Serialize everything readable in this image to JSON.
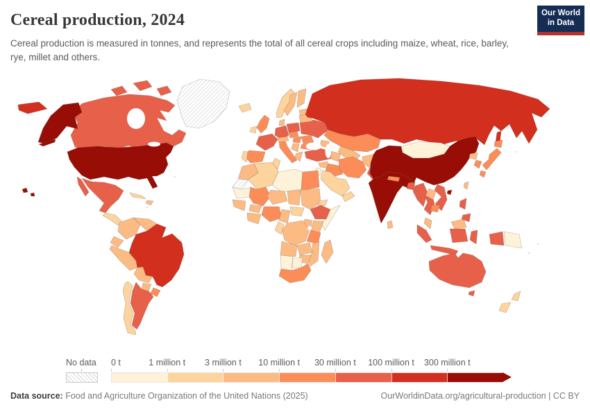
{
  "header": {
    "title": "Cereal production, 2024",
    "subtitle": "Cereal production is measured in tonnes, and represents the total of all cereal crops including maize, wheat, rice, barley, rye, millet and others.",
    "logo": {
      "line1": "Our World",
      "line2": "in Data",
      "bg_color": "#152d55",
      "accent_color": "#b5332a"
    }
  },
  "legend": {
    "no_data_label": "No data",
    "no_data_hatch_color": "#d4d4d4",
    "bins": [
      {
        "label": "0 t",
        "color": "#fef2d9"
      },
      {
        "label": "1 million t",
        "color": "#fdd49e"
      },
      {
        "label": "3 million t",
        "color": "#fdbb84"
      },
      {
        "label": "10 million t",
        "color": "#fc8d59"
      },
      {
        "label": "30 million t",
        "color": "#e7604a"
      },
      {
        "label": "100 million t",
        "color": "#d32f1e"
      },
      {
        "label": "300 million t",
        "color": "#980d05"
      }
    ]
  },
  "footer": {
    "source_label": "Data source:",
    "source_text": " Food and Agriculture Organization of the United Nations (2025)",
    "link_text": "OurWorldinData.org/agricultural-production | CC BY"
  },
  "chart_data": {
    "type": "choropleth_map",
    "title": "Cereal production, 2024",
    "unit": "tonnes",
    "bin_edges_t": [
      0,
      1000000,
      3000000,
      10000000,
      30000000,
      100000000,
      300000000
    ],
    "bin_note": "regions[].bin indexes legend.bins; bin i spans edge i to edge i+1, bin 6 means over 300 million t, null means no data",
    "regions": [
      {
        "id": "greenland",
        "name": "Greenland",
        "bin": null
      },
      {
        "id": "canada",
        "name": "Canada",
        "bin": 4
      },
      {
        "id": "usa",
        "name": "United States",
        "bin": 6
      },
      {
        "id": "mexico",
        "name": "Mexico",
        "bin": 4
      },
      {
        "id": "central-america",
        "name": "Central America",
        "bin": 1
      },
      {
        "id": "cuba",
        "name": "Cuba",
        "bin": 1
      },
      {
        "id": "hispaniola",
        "name": "Hispaniola",
        "bin": 2
      },
      {
        "id": "colombia",
        "name": "Colombia",
        "bin": 2
      },
      {
        "id": "venezuela",
        "name": "Venezuela",
        "bin": 2
      },
      {
        "id": "guyanas",
        "name": "Guyanas",
        "bin": 1
      },
      {
        "id": "ecuador",
        "name": "Ecuador",
        "bin": 2
      },
      {
        "id": "peru",
        "name": "Peru",
        "bin": 2
      },
      {
        "id": "brazil",
        "name": "Brazil",
        "bin": 5
      },
      {
        "id": "bolivia",
        "name": "Bolivia",
        "bin": 2
      },
      {
        "id": "paraguay",
        "name": "Paraguay",
        "bin": 2
      },
      {
        "id": "uruguay",
        "name": "Uruguay",
        "bin": 3
      },
      {
        "id": "argentina",
        "name": "Argentina",
        "bin": 4
      },
      {
        "id": "chile",
        "name": "Chile",
        "bin": 1
      },
      {
        "id": "iceland",
        "name": "Iceland",
        "bin": 1
      },
      {
        "id": "united-kingdom",
        "name": "United Kingdom",
        "bin": 3
      },
      {
        "id": "ireland",
        "name": "Ireland",
        "bin": 1
      },
      {
        "id": "norway",
        "name": "Norway",
        "bin": 1
      },
      {
        "id": "sweden",
        "name": "Sweden",
        "bin": 2
      },
      {
        "id": "finland",
        "name": "Finland",
        "bin": 2
      },
      {
        "id": "baltic-states",
        "name": "Baltic states",
        "bin": 2
      },
      {
        "id": "denmark",
        "name": "Denmark",
        "bin": 2
      },
      {
        "id": "germany",
        "name": "Germany",
        "bin": 4
      },
      {
        "id": "france",
        "name": "France",
        "bin": 4
      },
      {
        "id": "spain",
        "name": "Spain",
        "bin": 3
      },
      {
        "id": "portugal",
        "name": "Portugal",
        "bin": 1
      },
      {
        "id": "italy",
        "name": "Italy",
        "bin": 3
      },
      {
        "id": "alpine-states",
        "name": "Alpine states",
        "bin": 2
      },
      {
        "id": "czechia-slovakia",
        "name": "Czechia & Slovakia",
        "bin": 3
      },
      {
        "id": "poland",
        "name": "Poland",
        "bin": 4
      },
      {
        "id": "hungary",
        "name": "Hungary",
        "bin": 3
      },
      {
        "id": "western-balkans",
        "name": "Western Balkans",
        "bin": 2
      },
      {
        "id": "greece",
        "name": "Greece",
        "bin": 2
      },
      {
        "id": "romania",
        "name": "Romania",
        "bin": 3
      },
      {
        "id": "bulgaria",
        "name": "Bulgaria",
        "bin": 3
      },
      {
        "id": "ukraine",
        "name": "Ukraine",
        "bin": 4
      },
      {
        "id": "belarus",
        "name": "Belarus",
        "bin": 2
      },
      {
        "id": "russia",
        "name": "Russia",
        "bin": 5
      },
      {
        "id": "kazakhstan",
        "name": "Kazakhstan",
        "bin": 3
      },
      {
        "id": "uzbekistan",
        "name": "Uzbekistan",
        "bin": 2
      },
      {
        "id": "turkmenistan",
        "name": "Turkmenistan",
        "bin": 2
      },
      {
        "id": "caucasus",
        "name": "Caucasus",
        "bin": 2
      },
      {
        "id": "turkey",
        "name": "Turkey",
        "bin": 4
      },
      {
        "id": "syria",
        "name": "Syria",
        "bin": 2
      },
      {
        "id": "iraq",
        "name": "Iraq",
        "bin": 3
      },
      {
        "id": "iran",
        "name": "Iran",
        "bin": 3
      },
      {
        "id": "afghanistan",
        "name": "Afghanistan",
        "bin": 2
      },
      {
        "id": "pakistan",
        "name": "Pakistan",
        "bin": 4
      },
      {
        "id": "saudi-arabia",
        "name": "Saudi Arabia",
        "bin": 1
      },
      {
        "id": "yemen-oman",
        "name": "Yemen & Oman",
        "bin": 1
      },
      {
        "id": "israel-jordan",
        "name": "Israel & Jordan",
        "bin": 0
      },
      {
        "id": "morocco",
        "name": "Morocco",
        "bin": 2
      },
      {
        "id": "western-sahara",
        "name": "Western Sahara",
        "bin": null
      },
      {
        "id": "algeria",
        "name": "Algeria",
        "bin": 1
      },
      {
        "id": "tunisia",
        "name": "Tunisia",
        "bin": 1
      },
      {
        "id": "libya",
        "name": "Libya",
        "bin": 0
      },
      {
        "id": "egypt",
        "name": "Egypt",
        "bin": 3
      },
      {
        "id": "mauritania",
        "name": "Mauritania",
        "bin": 0
      },
      {
        "id": "mali",
        "name": "Mali",
        "bin": 3
      },
      {
        "id": "niger",
        "name": "Niger",
        "bin": 2
      },
      {
        "id": "chad",
        "name": "Chad",
        "bin": 2
      },
      {
        "id": "sudan",
        "name": "Sudan",
        "bin": 2
      },
      {
        "id": "eritrea",
        "name": "Eritrea",
        "bin": 1
      },
      {
        "id": "senegal-guinea",
        "name": "Senegal & Guinea",
        "bin": 2
      },
      {
        "id": "burkina-faso",
        "name": "Burkina Faso",
        "bin": 2
      },
      {
        "id": "cote-divoire-ghana",
        "name": "Cote d'Ivoire & Ghana",
        "bin": 2
      },
      {
        "id": "nigeria",
        "name": "Nigeria",
        "bin": 3
      },
      {
        "id": "cameroon",
        "name": "Cameroon",
        "bin": 2
      },
      {
        "id": "central-african-republic",
        "name": "Central African Republic",
        "bin": 1
      },
      {
        "id": "ethiopia",
        "name": "Ethiopia",
        "bin": 4
      },
      {
        "id": "somalia",
        "name": "Somalia",
        "bin": 0
      },
      {
        "id": "kenya",
        "name": "Kenya",
        "bin": 2
      },
      {
        "id": "uganda",
        "name": "Uganda",
        "bin": 2
      },
      {
        "id": "dr-congo",
        "name": "Democratic Republic of Congo",
        "bin": 2
      },
      {
        "id": "gabon-congo",
        "name": "Gabon & Congo",
        "bin": 1
      },
      {
        "id": "tanzania",
        "name": "Tanzania",
        "bin": 3
      },
      {
        "id": "angola",
        "name": "Angola",
        "bin": 2
      },
      {
        "id": "zambia",
        "name": "Zambia",
        "bin": 2
      },
      {
        "id": "mozambique",
        "name": "Mozambique",
        "bin": 2
      },
      {
        "id": "zimbabwe",
        "name": "Zimbabwe",
        "bin": 2
      },
      {
        "id": "namibia",
        "name": "Namibia",
        "bin": 0
      },
      {
        "id": "botswana",
        "name": "Botswana",
        "bin": 0
      },
      {
        "id": "south-africa",
        "name": "South Africa",
        "bin": 3
      },
      {
        "id": "madagascar",
        "name": "Madagascar",
        "bin": 2
      },
      {
        "id": "india",
        "name": "India",
        "bin": 6
      },
      {
        "id": "nepal",
        "name": "Nepal",
        "bin": 3
      },
      {
        "id": "bangladesh",
        "name": "Bangladesh",
        "bin": 4
      },
      {
        "id": "sri-lanka",
        "name": "Sri Lanka",
        "bin": 2
      },
      {
        "id": "china",
        "name": "China",
        "bin": 6
      },
      {
        "id": "mongolia",
        "name": "Mongolia",
        "bin": 0
      },
      {
        "id": "north-korea",
        "name": "North Korea",
        "bin": 2
      },
      {
        "id": "south-korea",
        "name": "South Korea",
        "bin": 3
      },
      {
        "id": "japan",
        "name": "Japan",
        "bin": 3
      },
      {
        "id": "taiwan",
        "name": "Taiwan",
        "bin": 2
      },
      {
        "id": "myanmar",
        "name": "Myanmar",
        "bin": 4
      },
      {
        "id": "thailand",
        "name": "Thailand",
        "bin": 4
      },
      {
        "id": "laos",
        "name": "Laos",
        "bin": 2
      },
      {
        "id": "vietnam",
        "name": "Vietnam",
        "bin": 4
      },
      {
        "id": "cambodia",
        "name": "Cambodia",
        "bin": 3
      },
      {
        "id": "malaysia",
        "name": "Malaysia",
        "bin": 2
      },
      {
        "id": "indonesia",
        "name": "Indonesia",
        "bin": 4
      },
      {
        "id": "papua-new-guinea",
        "name": "Papua New Guinea",
        "bin": 0
      },
      {
        "id": "philippines",
        "name": "Philippines",
        "bin": 4
      },
      {
        "id": "australia",
        "name": "Australia",
        "bin": 4
      },
      {
        "id": "new-zealand",
        "name": "New Zealand",
        "bin": 1
      }
    ]
  }
}
